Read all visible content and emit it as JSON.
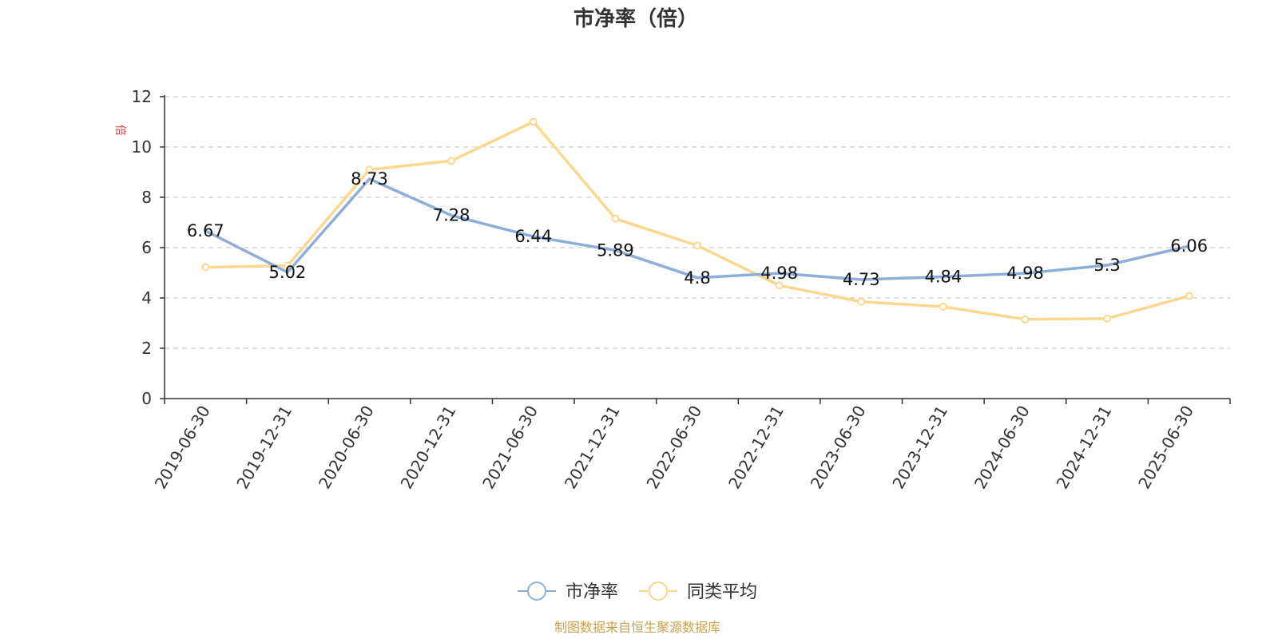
{
  "chart_data": {
    "type": "line",
    "title": "市净率（倍）",
    "ylabel": "倍",
    "ylim": [
      0,
      12
    ],
    "yticks": [
      0,
      2,
      4,
      6,
      8,
      10,
      12
    ],
    "categories": [
      "2019-06-30",
      "2019-12-31",
      "2020-06-30",
      "2020-12-31",
      "2021-06-30",
      "2021-12-31",
      "2022-06-30",
      "2022-12-31",
      "2023-06-30",
      "2023-12-31",
      "2024-06-30",
      "2024-12-31",
      "2025-06-30"
    ],
    "series": [
      {
        "name": "市净率",
        "color": "#8eaed8",
        "values": [
          6.67,
          5.02,
          8.73,
          7.28,
          6.44,
          5.89,
          4.8,
          4.98,
          4.73,
          4.84,
          4.98,
          5.3,
          6.06
        ],
        "labels": [
          "6.67",
          "5.02",
          "8.73",
          "7.28",
          "6.44",
          "5.89",
          "4.8",
          "4.98",
          "4.73",
          "4.84",
          "4.98",
          "5.3",
          "6.06"
        ]
      },
      {
        "name": "同类平均",
        "color": "#fbd88e",
        "values": [
          5.22,
          5.28,
          9.1,
          9.45,
          11.0,
          7.15,
          6.08,
          4.5,
          3.85,
          3.65,
          3.15,
          3.18,
          4.08
        ]
      }
    ],
    "grid": true,
    "legend_position": "bottom-center"
  },
  "source_text": "制图数据来自恒生聚源数据库",
  "colors": {
    "axis": "#333333",
    "grid": "#cccccc",
    "ylabel": "#e53935",
    "source": "#c8a24a"
  }
}
